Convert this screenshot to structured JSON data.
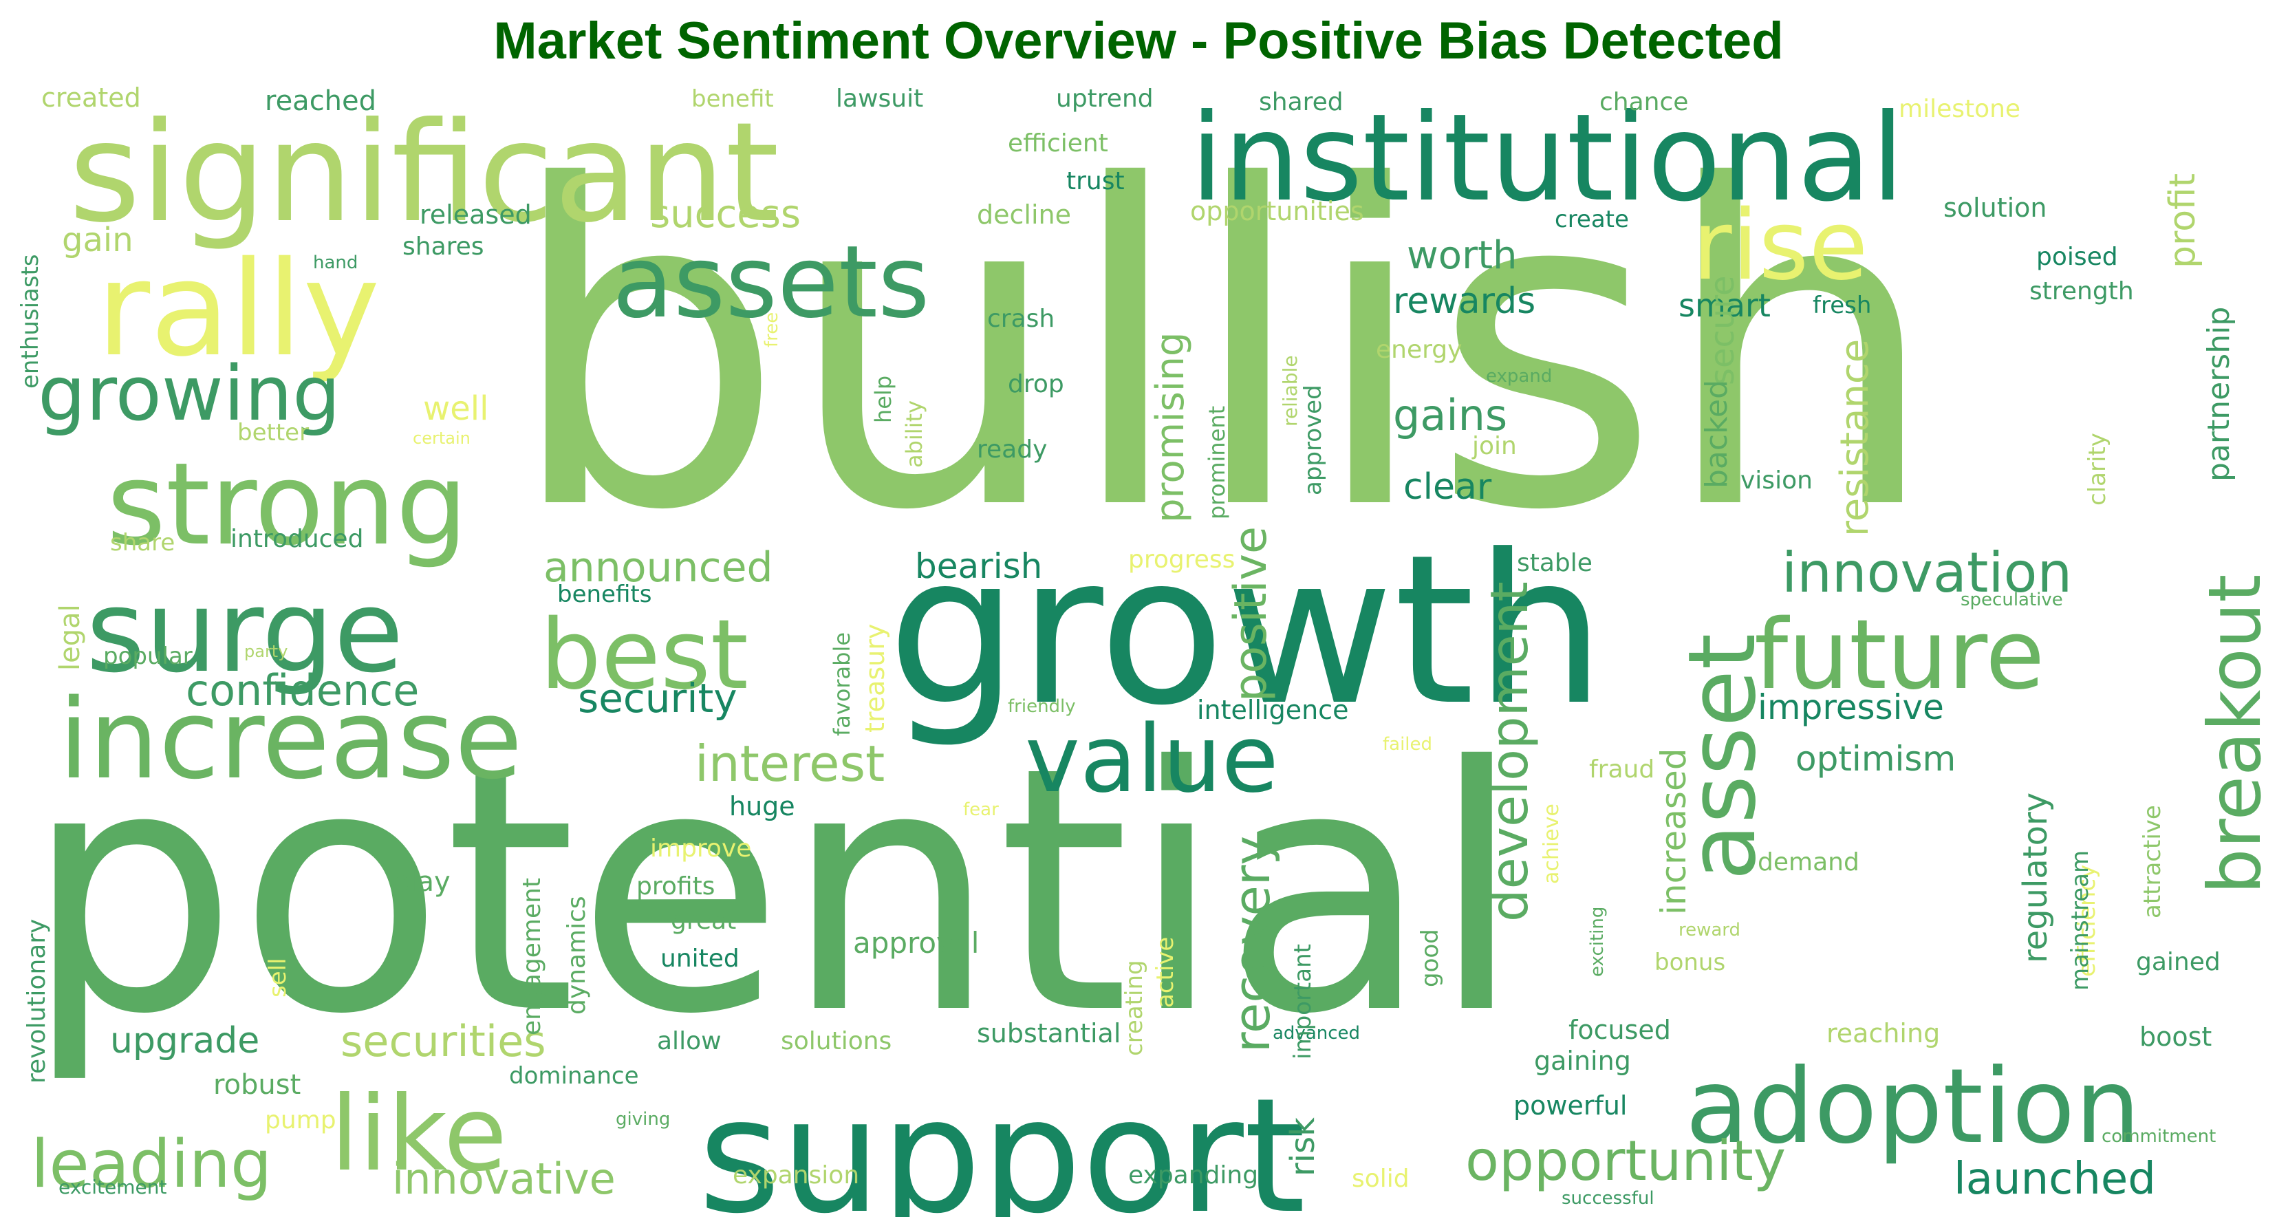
{
  "chart_data": {
    "type": "wordcloud",
    "title": "Market Sentiment Overview - Positive Bias Detected",
    "title_color": "#006400",
    "background": "#ffffff",
    "colormap": "summer (light yellow to dark green)",
    "words": [
      {
        "text": "bullish",
        "size": 640,
        "color": "#8ec76a",
        "vertical": false
      },
      {
        "text": "potential",
        "size": 490,
        "color": "#5aab62",
        "vertical": false
      },
      {
        "text": "growth",
        "size": 300,
        "color": "#178661",
        "vertical": false
      },
      {
        "text": "significant",
        "size": 200,
        "color": "#b0d56d",
        "vertical": false
      },
      {
        "text": "support",
        "size": 230,
        "color": "#178661",
        "vertical": false
      },
      {
        "text": "institutional",
        "size": 175,
        "color": "#178661",
        "vertical": false
      },
      {
        "text": "rally",
        "size": 190,
        "color": "#e8f270",
        "vertical": false
      },
      {
        "text": "strong",
        "size": 165,
        "color": "#7cbf66",
        "vertical": false
      },
      {
        "text": "surge",
        "size": 165,
        "color": "#3d9a64",
        "vertical": false
      },
      {
        "text": "increase",
        "size": 160,
        "color": "#6ab462",
        "vertical": false
      },
      {
        "text": "assets",
        "size": 145,
        "color": "#3d9a64",
        "vertical": false
      },
      {
        "text": "best",
        "size": 140,
        "color": "#7cbf66",
        "vertical": false
      },
      {
        "text": "future",
        "size": 140,
        "color": "#6ab462",
        "vertical": false
      },
      {
        "text": "adoption",
        "size": 150,
        "color": "#3d9a64",
        "vertical": false
      },
      {
        "text": "like",
        "size": 150,
        "color": "#8ec76a",
        "vertical": false
      },
      {
        "text": "value",
        "size": 135,
        "color": "#178661",
        "vertical": false
      },
      {
        "text": "rise",
        "size": 140,
        "color": "#e8f270",
        "vertical": false
      },
      {
        "text": "asset",
        "size": 135,
        "color": "#5aab62",
        "vertical": true
      },
      {
        "text": "breakout",
        "size": 105,
        "color": "#5aab62",
        "vertical": true
      },
      {
        "text": "growing",
        "size": 110,
        "color": "#3d9a64",
        "vertical": false
      },
      {
        "text": "leading",
        "size": 95,
        "color": "#7cbf66",
        "vertical": false
      },
      {
        "text": "opportunity",
        "size": 80,
        "color": "#6ab462",
        "vertical": false
      },
      {
        "text": "innovation",
        "size": 80,
        "color": "#3d9a64",
        "vertical": false
      },
      {
        "text": "development",
        "size": 75,
        "color": "#5aab62",
        "vertical": true
      },
      {
        "text": "recovery",
        "size": 72,
        "color": "#5aab62",
        "vertical": true
      },
      {
        "text": "positive",
        "size": 65,
        "color": "#6ab462",
        "vertical": true
      },
      {
        "text": "promising",
        "size": 56,
        "color": "#7cbf66",
        "vertical": true
      },
      {
        "text": "interest",
        "size": 72,
        "color": "#8ec76a",
        "vertical": false
      },
      {
        "text": "confidence",
        "size": 62,
        "color": "#3d9a64",
        "vertical": false
      },
      {
        "text": "security",
        "size": 58,
        "color": "#178661",
        "vertical": false
      },
      {
        "text": "announced",
        "size": 60,
        "color": "#7cbf66",
        "vertical": false
      },
      {
        "text": "securities",
        "size": 62,
        "color": "#b0d56d",
        "vertical": false
      },
      {
        "text": "innovative",
        "size": 62,
        "color": "#8ec76a",
        "vertical": false
      },
      {
        "text": "launched",
        "size": 64,
        "color": "#178661",
        "vertical": false
      },
      {
        "text": "gains",
        "size": 62,
        "color": "#3d9a64",
        "vertical": false
      },
      {
        "text": "worth",
        "size": 56,
        "color": "#3d9a64",
        "vertical": false
      },
      {
        "text": "rewards",
        "size": 52,
        "color": "#178661",
        "vertical": false
      },
      {
        "text": "clear",
        "size": 52,
        "color": "#178661",
        "vertical": false
      },
      {
        "text": "bearish",
        "size": 50,
        "color": "#178661",
        "vertical": false
      },
      {
        "text": "success",
        "size": 56,
        "color": "#b0d56d",
        "vertical": false
      },
      {
        "text": "impressive",
        "size": 50,
        "color": "#178661",
        "vertical": false
      },
      {
        "text": "optimism",
        "size": 50,
        "color": "#3d9a64",
        "vertical": false
      },
      {
        "text": "upgrade",
        "size": 52,
        "color": "#3d9a64",
        "vertical": false
      },
      {
        "text": "smart",
        "size": 46,
        "color": "#178661",
        "vertical": false
      },
      {
        "text": "resistance",
        "size": 56,
        "color": "#b0d56d",
        "vertical": true
      },
      {
        "text": "increased",
        "size": 50,
        "color": "#7cbf66",
        "vertical": true
      },
      {
        "text": "secure",
        "size": 48,
        "color": "#7cbf66",
        "vertical": true
      },
      {
        "text": "backed",
        "size": 44,
        "color": "#5aab62",
        "vertical": true
      },
      {
        "text": "profit",
        "size": 52,
        "color": "#b0d56d",
        "vertical": true
      },
      {
        "text": "partnership",
        "size": 44,
        "color": "#3d9a64",
        "vertical": true
      },
      {
        "text": "regulatory",
        "size": 48,
        "color": "#3d9a64",
        "vertical": true
      },
      {
        "text": "risk",
        "size": 48,
        "color": "#3d9a64",
        "vertical": true
      },
      {
        "text": "engagement",
        "size": 36,
        "color": "#5aab62",
        "vertical": true
      },
      {
        "text": "dynamics",
        "size": 36,
        "color": "#5aab62",
        "vertical": true
      },
      {
        "text": "treasury",
        "size": 38,
        "color": "#e8f270",
        "vertical": true
      },
      {
        "text": "favorable",
        "size": 32,
        "color": "#5aab62",
        "vertical": true
      },
      {
        "text": "legal",
        "size": 40,
        "color": "#b0d56d",
        "vertical": true
      },
      {
        "text": "well",
        "size": 48,
        "color": "#e8f270",
        "vertical": false
      },
      {
        "text": "gain",
        "size": 48,
        "color": "#b0d56d",
        "vertical": false
      },
      {
        "text": "enthusiasts",
        "size": 34,
        "color": "#3d9a64",
        "vertical": true
      },
      {
        "text": "revolutionary",
        "size": 36,
        "color": "#3d9a64",
        "vertical": true
      },
      {
        "text": "created",
        "size": 38,
        "color": "#b0d56d",
        "vertical": false
      },
      {
        "text": "reached",
        "size": 40,
        "color": "#3d9a64",
        "vertical": false
      },
      {
        "text": "benefit",
        "size": 34,
        "color": "#b0d56d",
        "vertical": false
      },
      {
        "text": "lawsuit",
        "size": 36,
        "color": "#3d9a64",
        "vertical": false
      },
      {
        "text": "uptrend",
        "size": 36,
        "color": "#3d9a64",
        "vertical": false
      },
      {
        "text": "shared",
        "size": 36,
        "color": "#3d9a64",
        "vertical": false
      },
      {
        "text": "chance",
        "size": 36,
        "color": "#5aab62",
        "vertical": false
      },
      {
        "text": "milestone",
        "size": 36,
        "color": "#e8f270",
        "vertical": false
      },
      {
        "text": "efficient",
        "size": 36,
        "color": "#7cbf66",
        "vertical": false
      },
      {
        "text": "trust",
        "size": 36,
        "color": "#178661",
        "vertical": false
      },
      {
        "text": "released",
        "size": 38,
        "color": "#3d9a64",
        "vertical": false
      },
      {
        "text": "decline",
        "size": 38,
        "color": "#8ec76a",
        "vertical": false
      },
      {
        "text": "opportunities",
        "size": 38,
        "color": "#b0d56d",
        "vertical": false
      },
      {
        "text": "create",
        "size": 34,
        "color": "#178661",
        "vertical": false
      },
      {
        "text": "solution",
        "size": 38,
        "color": "#3d9a64",
        "vertical": false
      },
      {
        "text": "poised",
        "size": 36,
        "color": "#178661",
        "vertical": false
      },
      {
        "text": "strength",
        "size": 36,
        "color": "#3d9a64",
        "vertical": false
      },
      {
        "text": "shares",
        "size": 36,
        "color": "#3d9a64",
        "vertical": false
      },
      {
        "text": "hand",
        "size": 26,
        "color": "#3d9a64",
        "vertical": false
      },
      {
        "text": "fresh",
        "size": 34,
        "color": "#178661",
        "vertical": false
      },
      {
        "text": "crash",
        "size": 36,
        "color": "#3d9a64",
        "vertical": false
      },
      {
        "text": "drop",
        "size": 36,
        "color": "#3d9a64",
        "vertical": false
      },
      {
        "text": "ready",
        "size": 36,
        "color": "#3d9a64",
        "vertical": false
      },
      {
        "text": "energy",
        "size": 36,
        "color": "#b0d56d",
        "vertical": false
      },
      {
        "text": "expand",
        "size": 26,
        "color": "#5aab62",
        "vertical": false
      },
      {
        "text": "join",
        "size": 36,
        "color": "#b0d56d",
        "vertical": false
      },
      {
        "text": "vision",
        "size": 36,
        "color": "#3d9a64",
        "vertical": false
      },
      {
        "text": "better",
        "size": 34,
        "color": "#b0d56d",
        "vertical": false
      },
      {
        "text": "certain",
        "size": 24,
        "color": "#e8f270",
        "vertical": false
      },
      {
        "text": "share",
        "size": 34,
        "color": "#b0d56d",
        "vertical": false
      },
      {
        "text": "introduced",
        "size": 36,
        "color": "#3d9a64",
        "vertical": false
      },
      {
        "text": "progress",
        "size": 36,
        "color": "#e8f270",
        "vertical": false
      },
      {
        "text": "stable",
        "size": 36,
        "color": "#3d9a64",
        "vertical": false
      },
      {
        "text": "benefits",
        "size": 34,
        "color": "#178661",
        "vertical": false
      },
      {
        "text": "speculative",
        "size": 26,
        "color": "#5aab62",
        "vertical": false
      },
      {
        "text": "popular",
        "size": 34,
        "color": "#5aab62",
        "vertical": false
      },
      {
        "text": "party",
        "size": 24,
        "color": "#b0d56d",
        "vertical": false
      },
      {
        "text": "intelligence",
        "size": 38,
        "color": "#178661",
        "vertical": false
      },
      {
        "text": "friendly",
        "size": 26,
        "color": "#7cbf66",
        "vertical": false
      },
      {
        "text": "failed",
        "size": 26,
        "color": "#e8f270",
        "vertical": false
      },
      {
        "text": "fraud",
        "size": 36,
        "color": "#b0d56d",
        "vertical": false
      },
      {
        "text": "huge",
        "size": 38,
        "color": "#178661",
        "vertical": false
      },
      {
        "text": "fear",
        "size": 26,
        "color": "#e8f270",
        "vertical": false
      },
      {
        "text": "improve",
        "size": 36,
        "color": "#e8f270",
        "vertical": false
      },
      {
        "text": "profits",
        "size": 36,
        "color": "#5aab62",
        "vertical": false
      },
      {
        "text": "great",
        "size": 36,
        "color": "#5aab62",
        "vertical": false
      },
      {
        "text": "united",
        "size": 36,
        "color": "#178661",
        "vertical": false
      },
      {
        "text": "play",
        "size": 40,
        "color": "#5aab62",
        "vertical": false
      },
      {
        "text": "approval",
        "size": 42,
        "color": "#5aab62",
        "vertical": false
      },
      {
        "text": "demand",
        "size": 36,
        "color": "#7cbf66",
        "vertical": false
      },
      {
        "text": "bonus",
        "size": 34,
        "color": "#b0d56d",
        "vertical": false
      },
      {
        "text": "reward",
        "size": 26,
        "color": "#b0d56d",
        "vertical": false
      },
      {
        "text": "gained",
        "size": 36,
        "color": "#3d9a64",
        "vertical": false
      },
      {
        "text": "focused",
        "size": 38,
        "color": "#3d9a64",
        "vertical": false
      },
      {
        "text": "gaining",
        "size": 38,
        "color": "#3d9a64",
        "vertical": false
      },
      {
        "text": "reaching",
        "size": 38,
        "color": "#b0d56d",
        "vertical": false
      },
      {
        "text": "boost",
        "size": 38,
        "color": "#3d9a64",
        "vertical": false
      },
      {
        "text": "allow",
        "size": 36,
        "color": "#3d9a64",
        "vertical": false
      },
      {
        "text": "solutions",
        "size": 36,
        "color": "#8ec76a",
        "vertical": false
      },
      {
        "text": "substantial",
        "size": 38,
        "color": "#3d9a64",
        "vertical": false
      },
      {
        "text": "advanced",
        "size": 26,
        "color": "#178661",
        "vertical": false
      },
      {
        "text": "robust",
        "size": 40,
        "color": "#5aab62",
        "vertical": false
      },
      {
        "text": "pump",
        "size": 36,
        "color": "#e8f270",
        "vertical": false
      },
      {
        "text": "dominance",
        "size": 34,
        "color": "#3d9a64",
        "vertical": false
      },
      {
        "text": "giving",
        "size": 26,
        "color": "#5aab62",
        "vertical": false
      },
      {
        "text": "powerful",
        "size": 38,
        "color": "#178661",
        "vertical": false
      },
      {
        "text": "commitment",
        "size": 26,
        "color": "#5aab62",
        "vertical": false
      },
      {
        "text": "excitement",
        "size": 28,
        "color": "#3d9a64",
        "vertical": false
      },
      {
        "text": "expansion",
        "size": 36,
        "color": "#b0d56d",
        "vertical": false
      },
      {
        "text": "expanding",
        "size": 36,
        "color": "#3d9a64",
        "vertical": false
      },
      {
        "text": "solid",
        "size": 36,
        "color": "#e8f270",
        "vertical": false
      },
      {
        "text": "successful",
        "size": 26,
        "color": "#3d9a64",
        "vertical": false
      },
      {
        "text": "free",
        "size": 26,
        "color": "#e8f270",
        "vertical": true
      },
      {
        "text": "ability",
        "size": 32,
        "color": "#b0d56d",
        "vertical": true
      },
      {
        "text": "help",
        "size": 32,
        "color": "#5aab62",
        "vertical": true
      },
      {
        "text": "prominent",
        "size": 32,
        "color": "#5aab62",
        "vertical": true
      },
      {
        "text": "reliable",
        "size": 28,
        "color": "#b0d56d",
        "vertical": true
      },
      {
        "text": "approved",
        "size": 34,
        "color": "#3d9a64",
        "vertical": true
      },
      {
        "text": "achieve",
        "size": 30,
        "color": "#e8f270",
        "vertical": true
      },
      {
        "text": "creating",
        "size": 34,
        "color": "#b0d56d",
        "vertical": true
      },
      {
        "text": "active",
        "size": 34,
        "color": "#e8f270",
        "vertical": true
      },
      {
        "text": "important",
        "size": 34,
        "color": "#3d9a64",
        "vertical": true
      },
      {
        "text": "good",
        "size": 34,
        "color": "#5aab62",
        "vertical": true
      },
      {
        "text": "exciting",
        "size": 26,
        "color": "#5aab62",
        "vertical": true
      },
      {
        "text": "efficiency",
        "size": 34,
        "color": "#e8f270",
        "vertical": true
      },
      {
        "text": "mainstream",
        "size": 34,
        "color": "#3d9a64",
        "vertical": true
      },
      {
        "text": "attractive",
        "size": 34,
        "color": "#8ec76a",
        "vertical": true
      },
      {
        "text": "clarity",
        "size": 34,
        "color": "#b0d56d",
        "vertical": true
      },
      {
        "text": "sell",
        "size": 34,
        "color": "#e8f270",
        "vertical": true
      }
    ]
  }
}
